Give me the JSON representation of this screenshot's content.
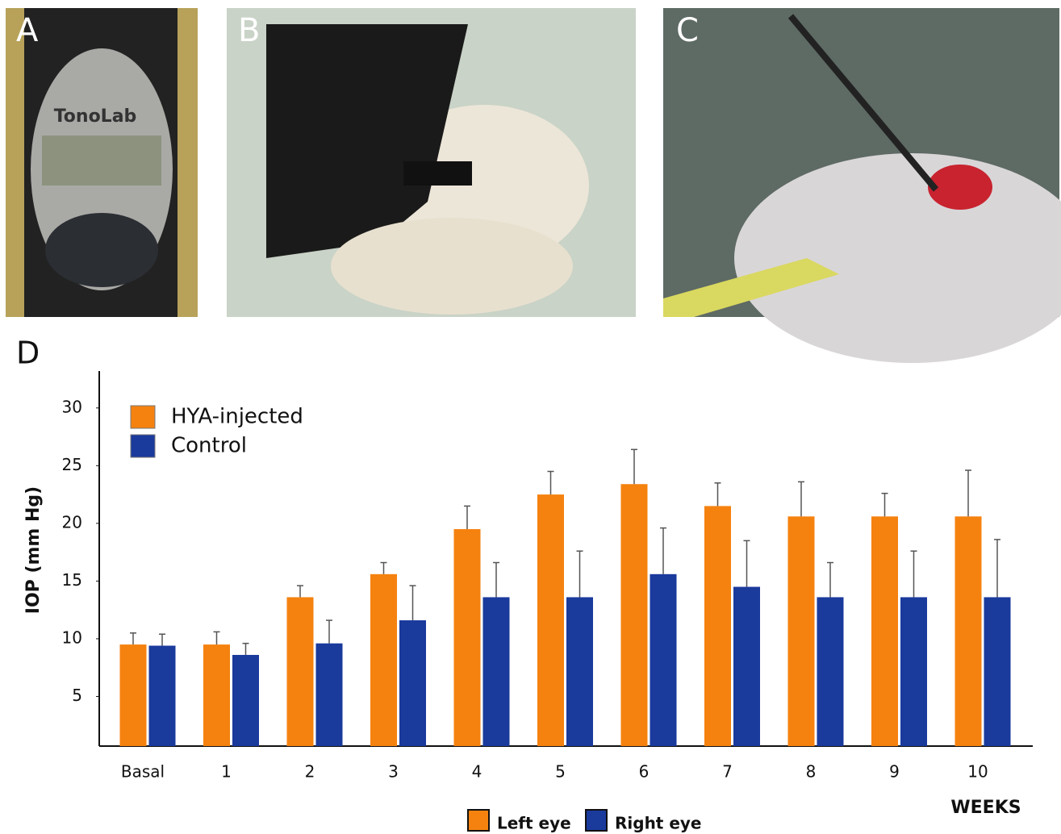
{
  "panels": [
    {
      "label": "A",
      "text": "TonoLab"
    },
    {
      "label": "B"
    },
    {
      "label": "C"
    }
  ],
  "chart_data": {
    "type": "bar",
    "panel_label": "D",
    "x_label": "WEEKS",
    "y_label": "IOP (mm Hg)",
    "categories": [
      "Basal",
      "1",
      "2",
      "3",
      "4",
      "5",
      "6",
      "7",
      "8",
      "9",
      "10"
    ],
    "series": [
      {
        "name": "HYA-injected",
        "color": "#f5820f",
        "values": [
          9.5,
          9.5,
          13.6,
          15.6,
          19.5,
          22.5,
          23.4,
          21.5,
          20.6,
          20.6,
          20.6
        ],
        "errors": [
          1.0,
          1.1,
          1.0,
          1.0,
          2.0,
          2.0,
          3.0,
          2.0,
          3.0,
          2.0,
          4.0
        ]
      },
      {
        "name": "Control",
        "color": "#1a3a9c",
        "values": [
          9.4,
          8.6,
          9.6,
          11.6,
          13.6,
          13.6,
          15.6,
          14.5,
          13.6,
          13.6,
          13.6
        ],
        "errors": [
          1.0,
          1.0,
          2.0,
          3.0,
          3.0,
          4.0,
          4.0,
          4.0,
          3.0,
          4.0,
          5.0
        ]
      }
    ],
    "legend2": [
      "Left eye",
      "Right eye"
    ],
    "ylim": [
      0.7,
      33.2
    ],
    "yticks": [
      5,
      10,
      15,
      20,
      25,
      30
    ],
    "grid": false,
    "legend": "upper left"
  }
}
